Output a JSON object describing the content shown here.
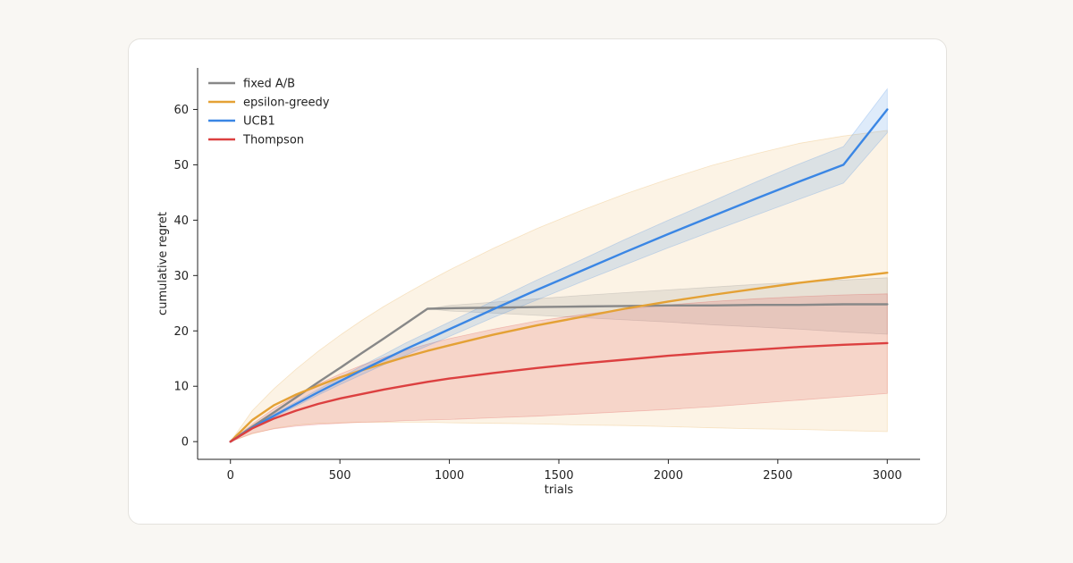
{
  "chart_data": {
    "type": "line",
    "title": "",
    "xlabel": "trials",
    "ylabel": "cumulative regret",
    "xlim": [
      -150,
      3150
    ],
    "ylim": [
      -3.2,
      67.5
    ],
    "x_ticks": [
      0,
      500,
      1000,
      1500,
      2000,
      2500,
      3000
    ],
    "y_ticks": [
      0,
      10,
      20,
      30,
      40,
      50,
      60
    ],
    "grid": false,
    "legend_position": "top-left",
    "x": [
      0,
      100,
      200,
      300,
      400,
      500,
      600,
      700,
      800,
      900,
      1000,
      1200,
      1400,
      1600,
      1800,
      2000,
      2200,
      2400,
      2600,
      2800,
      3000
    ],
    "series": [
      {
        "name": "fixed A/B",
        "color": "#888888",
        "values": [
          0,
          2.7,
          5.3,
          8.0,
          10.7,
          13.3,
          16.0,
          18.6,
          21.3,
          24.0,
          24.1,
          24.2,
          24.3,
          24.4,
          24.5,
          24.6,
          24.6,
          24.7,
          24.7,
          24.8,
          24.8
        ],
        "lower": [
          0,
          2.7,
          5.3,
          8.0,
          10.7,
          13.3,
          16.0,
          18.6,
          21.3,
          24.0,
          23.6,
          23.2,
          22.8,
          22.4,
          22.0,
          21.6,
          21.1,
          20.7,
          20.3,
          19.8,
          19.4
        ],
        "upper": [
          0,
          2.7,
          5.3,
          8.0,
          10.7,
          13.3,
          16.0,
          18.6,
          21.3,
          24.0,
          24.6,
          25.2,
          25.8,
          26.4,
          26.9,
          27.4,
          27.9,
          28.4,
          28.8,
          29.2,
          29.6
        ]
      },
      {
        "name": "epsilon-greedy",
        "color": "#e4a135",
        "values": [
          0,
          3.9,
          6.6,
          8.5,
          10.1,
          11.6,
          12.9,
          14.1,
          15.3,
          16.4,
          17.4,
          19.3,
          21.0,
          22.5,
          24.0,
          25.3,
          26.5,
          27.6,
          28.7,
          29.6,
          30.5
        ],
        "lower": [
          0,
          1.4,
          2.4,
          3.0,
          3.3,
          3.4,
          3.5,
          3.5,
          3.5,
          3.5,
          3.4,
          3.3,
          3.2,
          3.0,
          2.9,
          2.7,
          2.5,
          2.3,
          2.2,
          2.0,
          1.8
        ],
        "upper": [
          0,
          5.6,
          9.6,
          13.1,
          16.3,
          19.2,
          21.9,
          24.4,
          26.7,
          28.9,
          31.0,
          34.9,
          38.5,
          41.7,
          44.7,
          47.4,
          49.9,
          52.0,
          53.9,
          55.2,
          56.2
        ]
      },
      {
        "name": "UCB1",
        "color": "#3a86e4",
        "values": [
          0,
          2.5,
          4.7,
          6.8,
          8.9,
          10.9,
          12.9,
          14.8,
          16.7,
          18.5,
          20.3,
          23.9,
          27.4,
          30.8,
          34.2,
          37.5,
          40.7,
          43.9,
          47.0,
          50.0,
          60.0
        ],
        "lower": [
          0,
          2.3,
          4.4,
          6.4,
          8.4,
          10.3,
          12.1,
          13.9,
          15.6,
          17.3,
          19.0,
          22.4,
          25.6,
          28.8,
          31.9,
          35.0,
          38.0,
          40.9,
          43.8,
          46.7,
          55.8
        ],
        "upper": [
          0,
          2.7,
          5.0,
          7.2,
          9.4,
          11.5,
          13.7,
          15.7,
          17.8,
          19.7,
          21.6,
          25.4,
          29.2,
          32.8,
          36.5,
          40.0,
          43.4,
          46.9,
          50.2,
          53.3,
          63.7
        ]
      },
      {
        "name": "Thompson",
        "color": "#dc4040",
        "values": [
          0,
          2.4,
          4.2,
          5.6,
          6.8,
          7.8,
          8.6,
          9.4,
          10.1,
          10.8,
          11.4,
          12.4,
          13.3,
          14.1,
          14.8,
          15.5,
          16.1,
          16.6,
          17.1,
          17.5,
          17.8
        ],
        "lower": [
          0,
          1.5,
          2.3,
          2.8,
          3.1,
          3.3,
          3.5,
          3.6,
          3.8,
          3.9,
          4.0,
          4.3,
          4.6,
          5.0,
          5.4,
          5.8,
          6.3,
          6.9,
          7.5,
          8.1,
          8.7
        ],
        "upper": [
          0,
          3.2,
          6.0,
          8.3,
          10.4,
          12.2,
          13.8,
          15.2,
          16.5,
          17.6,
          18.6,
          20.3,
          21.8,
          22.9,
          23.9,
          24.7,
          25.3,
          25.8,
          26.2,
          26.5,
          26.7
        ]
      }
    ]
  }
}
